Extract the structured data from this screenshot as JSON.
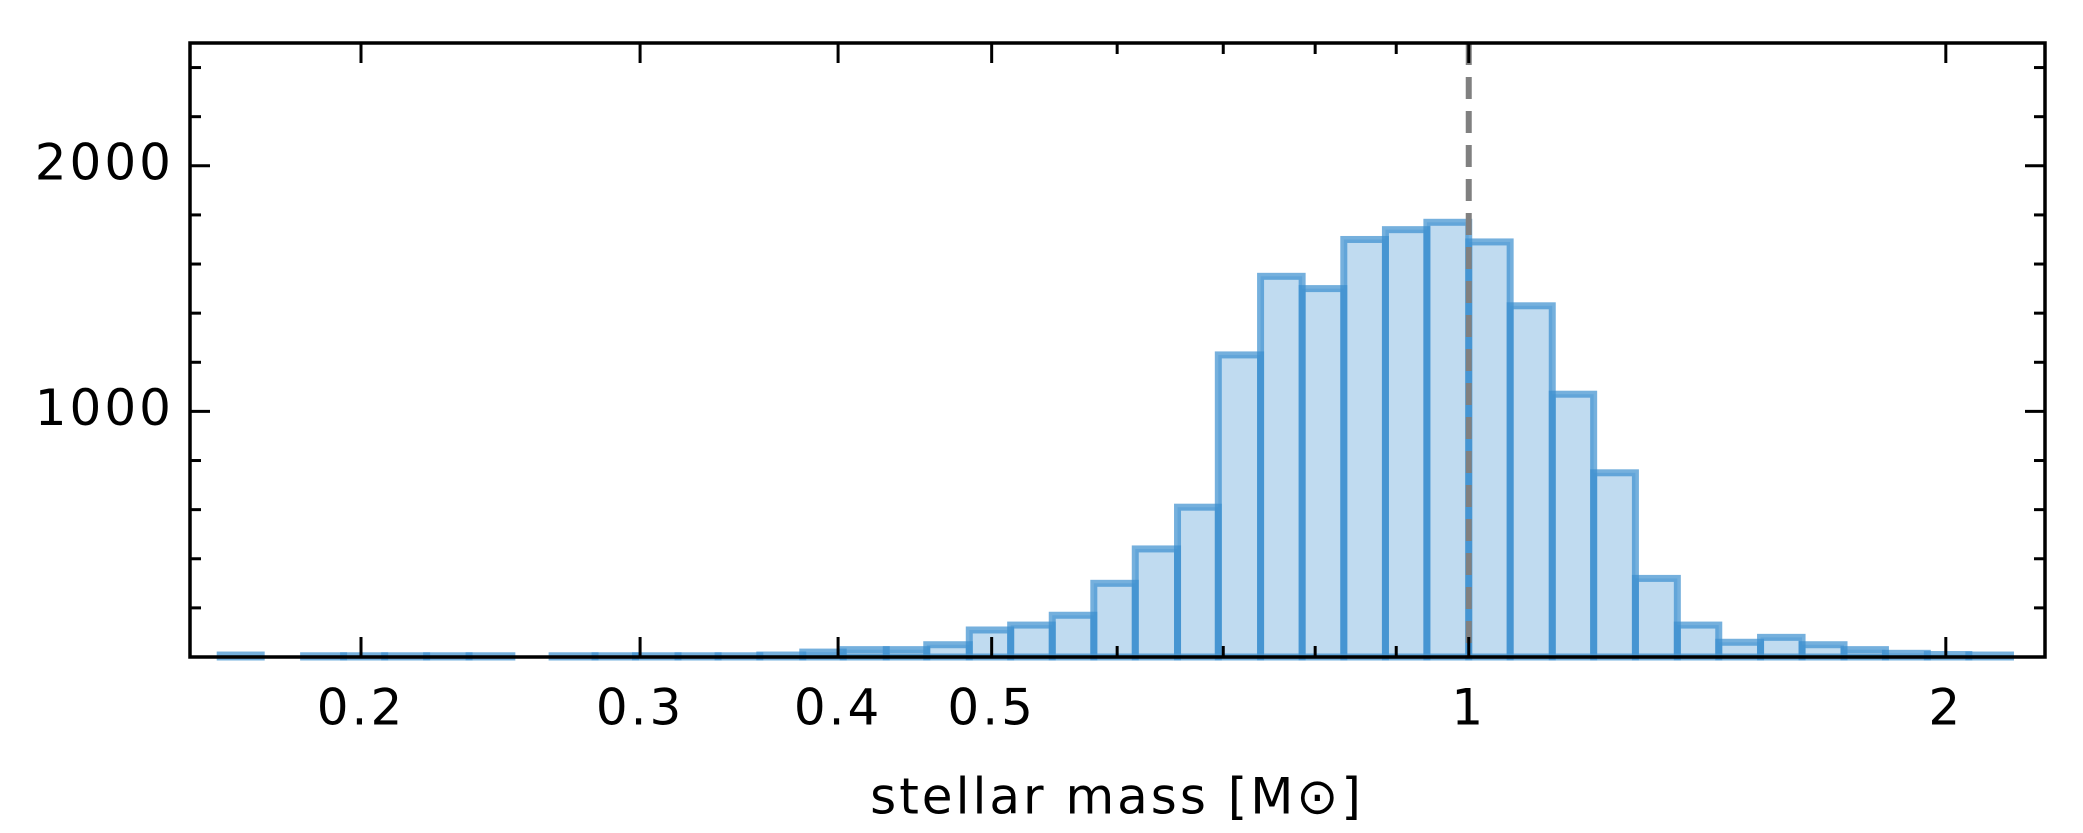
{
  "chart_data": {
    "type": "histogram",
    "xlabel": "stellar mass [M⊙]",
    "bins": [
      0.163,
      0.173,
      0.184,
      0.195,
      0.207,
      0.22,
      0.234,
      0.249,
      0.264,
      0.281,
      0.298,
      0.317,
      0.336,
      0.357,
      0.38,
      0.403,
      0.429,
      0.455,
      0.484,
      0.514,
      0.546,
      0.58,
      0.616,
      0.655,
      0.695,
      0.739,
      0.785,
      0.834,
      0.886,
      0.941,
      1.0,
      1.062,
      1.129,
      1.199,
      1.274,
      1.354,
      1.438,
      1.528,
      1.623,
      1.725,
      1.832,
      1.947,
      2.068,
      2.197
    ],
    "values": [
      8,
      0,
      5,
      5,
      5,
      5,
      5,
      0,
      5,
      5,
      5,
      5,
      5,
      8,
      20,
      30,
      30,
      50,
      110,
      130,
      170,
      300,
      440,
      610,
      1230,
      1550,
      1500,
      1700,
      1740,
      1770,
      1690,
      1430,
      1070,
      750,
      320,
      130,
      60,
      80,
      50,
      30,
      15,
      10,
      8
    ],
    "color": "#3a8fcf",
    "xscale": "log",
    "xlim": [
      0.156,
      2.31
    ],
    "xticks": [
      0.2,
      0.3,
      0.4,
      0.5,
      1,
      2
    ],
    "xminorticks": [
      0.6,
      0.7,
      0.8,
      0.9
    ],
    "ylim": [
      0,
      2500
    ],
    "yticks": [
      1000,
      2000
    ],
    "yminorticks": [
      200,
      400,
      600,
      800,
      1200,
      1400,
      1600,
      1800,
      2200,
      2400
    ],
    "vline": 1,
    "vline_color": "#808080"
  }
}
